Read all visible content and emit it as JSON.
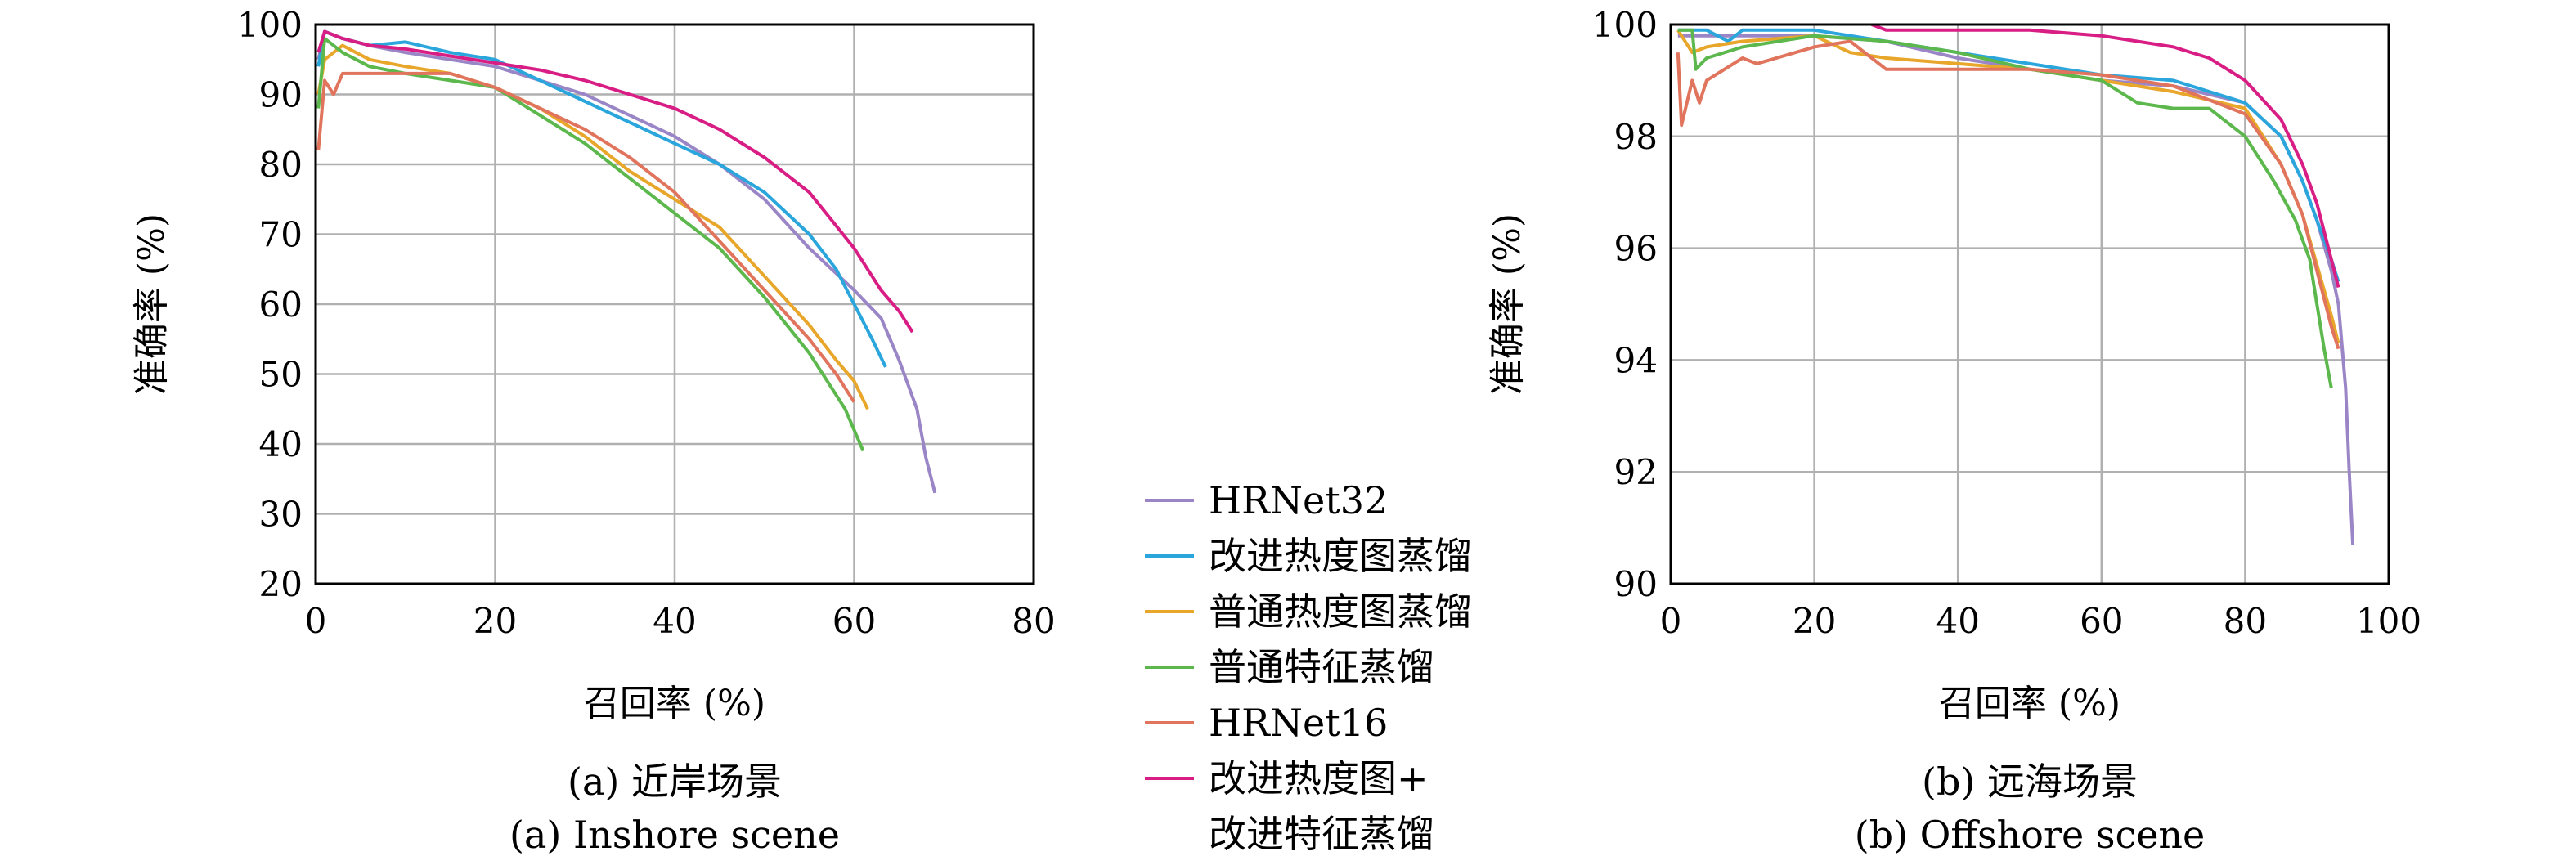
{
  "chart_data": [
    {
      "type": "line",
      "xlabel": "召回率 (%)",
      "ylabel": "准确率 (%)",
      "xlim": [
        0,
        80
      ],
      "ylim": [
        20,
        100
      ],
      "xticks": [
        "0",
        "20",
        "40",
        "60",
        "80"
      ],
      "yticks": [
        "20",
        "30",
        "40",
        "50",
        "60",
        "70",
        "80",
        "90",
        "100"
      ],
      "grid": true,
      "caption_cn": "(a) 近岸场景",
      "caption_en": "(a) Inshore scene",
      "series": [
        {
          "name": "HRNet32",
          "color": "#9a86c6",
          "x": [
            0.3,
            1,
            3,
            6,
            10,
            15,
            20,
            25,
            30,
            35,
            40,
            45,
            50,
            55,
            60,
            63,
            65,
            67,
            68,
            69
          ],
          "y": [
            95,
            99,
            98,
            97,
            96,
            95,
            94,
            92,
            90,
            87,
            84,
            80,
            75,
            68,
            62,
            58,
            52,
            45,
            38,
            33
          ]
        },
        {
          "name": "改进热度图蒸馏",
          "color": "#2aa6dc",
          "x": [
            0.3,
            1,
            3,
            6,
            10,
            15,
            20,
            25,
            30,
            35,
            40,
            45,
            50,
            55,
            58,
            60,
            62,
            63.5
          ],
          "y": [
            94,
            99,
            98,
            97,
            97.5,
            96,
            95,
            92,
            89,
            86,
            83,
            80,
            76,
            70,
            65,
            60,
            55,
            51
          ]
        },
        {
          "name": "普通热度图蒸馏",
          "color": "#e8a62a",
          "x": [
            0.3,
            1,
            3,
            6,
            10,
            15,
            20,
            25,
            30,
            35,
            40,
            45,
            50,
            55,
            58,
            60,
            61.5
          ],
          "y": [
            90,
            95,
            97,
            95,
            94,
            93,
            91,
            88,
            84,
            79,
            75,
            71,
            64,
            57,
            52,
            49,
            45
          ]
        },
        {
          "name": "普通特征蒸馏",
          "color": "#5cb84c",
          "x": [
            0.3,
            1,
            3,
            6,
            10,
            15,
            20,
            25,
            30,
            35,
            40,
            45,
            50,
            55,
            57,
            59,
            60,
            61
          ],
          "y": [
            88,
            98,
            96,
            94,
            93,
            92,
            91,
            87,
            83,
            78,
            73,
            68,
            61,
            53,
            49,
            45,
            42,
            39
          ]
        },
        {
          "name": "HRNet16",
          "color": "#e0745c",
          "x": [
            0.3,
            1,
            2,
            3,
            6,
            10,
            15,
            20,
            25,
            30,
            35,
            40,
            45,
            50,
            55,
            58,
            60
          ],
          "y": [
            82,
            92,
            90,
            93,
            93,
            93,
            93,
            91,
            88,
            85,
            81,
            76,
            69,
            62,
            55,
            50,
            46
          ]
        },
        {
          "name": "改进热度图+改进特征蒸馏",
          "color": "#d81e85",
          "x": [
            0.3,
            1,
            3,
            6,
            10,
            15,
            20,
            25,
            30,
            35,
            40,
            45,
            50,
            55,
            60,
            63,
            65,
            66.5
          ],
          "y": [
            96,
            99,
            98,
            97,
            96.5,
            95.5,
            94.5,
            93.5,
            92,
            90,
            88,
            85,
            81,
            76,
            68,
            62,
            59,
            56
          ]
        }
      ]
    },
    {
      "type": "line",
      "xlabel": "召回率 (%)",
      "ylabel": "准确率 (%)",
      "xlim": [
        0,
        100
      ],
      "ylim": [
        90,
        100
      ],
      "xticks": [
        "0",
        "20",
        "40",
        "60",
        "80",
        "100"
      ],
      "yticks": [
        "90",
        "92",
        "94",
        "96",
        "98",
        "100"
      ],
      "grid": true,
      "caption_cn": "(b) 远海场景",
      "caption_en": "(b) Offshore scene",
      "series": [
        {
          "name": "HRNet32",
          "color": "#9a86c6",
          "x": [
            1,
            10,
            20,
            30,
            40,
            50,
            60,
            70,
            80,
            85,
            88,
            90,
            92,
            93,
            94,
            94.5,
            95
          ],
          "y": [
            99.8,
            99.8,
            99.8,
            99.7,
            99.4,
            99.2,
            99.0,
            98.9,
            98.6,
            98.0,
            97.2,
            96.5,
            95.6,
            95.0,
            93.5,
            92.0,
            90.7
          ]
        },
        {
          "name": "改进热度图蒸馏",
          "color": "#2aa6dc",
          "x": [
            1,
            5,
            8,
            10,
            20,
            30,
            40,
            50,
            60,
            70,
            80,
            85,
            88,
            90,
            92,
            93
          ],
          "y": [
            99.9,
            99.9,
            99.7,
            99.9,
            99.9,
            99.7,
            99.5,
            99.3,
            99.1,
            99.0,
            98.6,
            98.0,
            97.2,
            96.5,
            95.8,
            95.4
          ]
        },
        {
          "name": "普通热度图蒸馏",
          "color": "#e8a62a",
          "x": [
            1,
            3,
            5,
            10,
            20,
            25,
            30,
            40,
            50,
            60,
            70,
            80,
            85,
            88,
            90,
            92,
            93
          ],
          "y": [
            99.9,
            99.5,
            99.6,
            99.7,
            99.8,
            99.5,
            99.4,
            99.3,
            99.2,
            99.0,
            98.8,
            98.5,
            97.5,
            96.6,
            95.7,
            94.8,
            94.3
          ]
        },
        {
          "name": "普通特征蒸馏",
          "color": "#5cb84c",
          "x": [
            1,
            3,
            3.5,
            5,
            10,
            20,
            30,
            40,
            50,
            60,
            65,
            70,
            75,
            80,
            84,
            87,
            89,
            90,
            91,
            92
          ],
          "y": [
            99.9,
            99.9,
            99.2,
            99.4,
            99.6,
            99.8,
            99.7,
            99.5,
            99.2,
            99.0,
            98.6,
            98.5,
            98.5,
            98.0,
            97.2,
            96.5,
            95.8,
            95.0,
            94.2,
            93.5
          ]
        },
        {
          "name": "HRNet16",
          "color": "#e0745c",
          "x": [
            1,
            1.5,
            3,
            4,
            5,
            10,
            12,
            20,
            25,
            30,
            40,
            50,
            60,
            70,
            80,
            85,
            88,
            90,
            92,
            93
          ],
          "y": [
            99.5,
            98.2,
            99.0,
            98.6,
            99.0,
            99.4,
            99.3,
            99.6,
            99.7,
            99.2,
            99.2,
            99.2,
            99.1,
            98.9,
            98.4,
            97.5,
            96.6,
            95.6,
            94.6,
            94.2
          ]
        },
        {
          "name": "改进热度图+改进特征蒸馏",
          "color": "#d81e85",
          "x": [
            28,
            30,
            40,
            50,
            60,
            70,
            75,
            80,
            85,
            88,
            90,
            92,
            93
          ],
          "y": [
            100,
            99.9,
            99.9,
            99.9,
            99.8,
            99.6,
            99.4,
            99.0,
            98.3,
            97.5,
            96.8,
            95.8,
            95.3
          ]
        }
      ]
    }
  ],
  "legend": {
    "entries": [
      {
        "text": "HRNet32",
        "color": "#9a86c6"
      },
      {
        "text": "改进热度图蒸馏",
        "color": "#2aa6dc"
      },
      {
        "text": "普通热度图蒸馏",
        "color": "#e8a62a"
      },
      {
        "text": "普通特征蒸馏",
        "color": "#5cb84c"
      },
      {
        "text": "HRNet16",
        "color": "#e0745c"
      },
      {
        "text": "改进热度图+",
        "color": "#d81e85"
      }
    ],
    "continuation": "改进特征蒸馏"
  }
}
